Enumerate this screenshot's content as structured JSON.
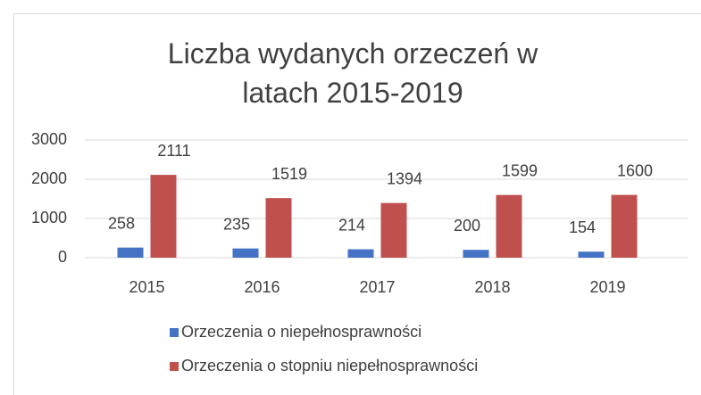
{
  "chart_data": {
    "type": "bar",
    "title": "Liczba wydanych orzeczeń w latach 2015-2019",
    "categories": [
      "2015",
      "2016",
      "2017",
      "2018",
      "2019"
    ],
    "series": [
      {
        "name": "Orzeczenia o niepełnosprawności",
        "color": "#4472c4",
        "values": [
          258,
          235,
          214,
          200,
          154
        ]
      },
      {
        "name": "Orzeczenia o stopniu niepełnosprawności",
        "color": "#c0504d",
        "values": [
          2111,
          1519,
          1394,
          1599,
          1600
        ]
      }
    ],
    "ylim": [
      0,
      3000
    ],
    "yticks": [
      0,
      1000,
      2000,
      3000
    ],
    "grid": true,
    "legend": "bottom"
  }
}
